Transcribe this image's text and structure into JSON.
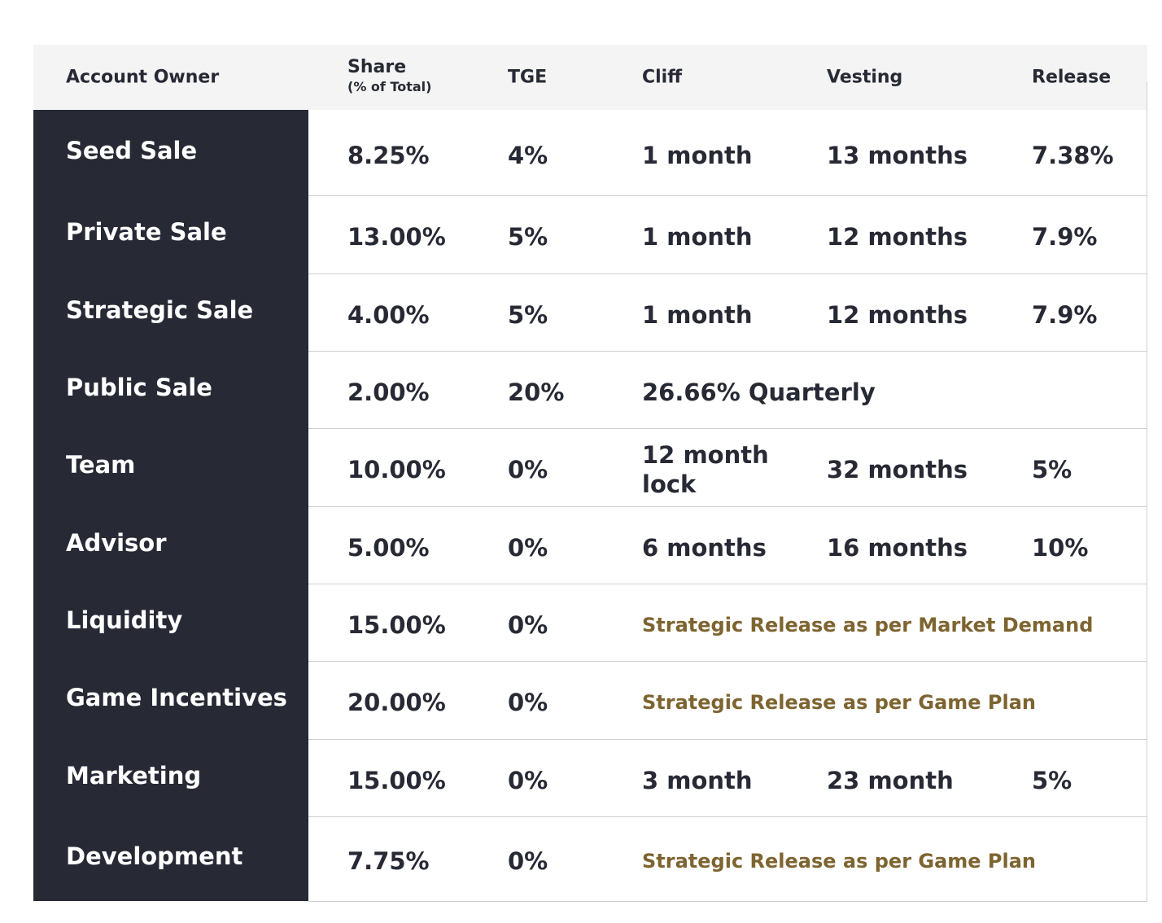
{
  "table": {
    "header": {
      "owner": "Account Owner",
      "share": "Share",
      "share_sub": "(% of Total)",
      "tge": "TGE",
      "cliff": "Cliff",
      "vesting": "Vesting",
      "release": "Release"
    },
    "rows": [
      {
        "owner": "Seed Sale",
        "share": "8.25%",
        "tge": "4%",
        "cliff": "1 month",
        "vesting": "13 months",
        "release": "7.38%"
      },
      {
        "owner": "Private Sale",
        "share": "13.00%",
        "tge": "5%",
        "cliff": "1 month",
        "vesting": "12 months",
        "release": "7.9%"
      },
      {
        "owner": "Strategic Sale",
        "share": "4.00%",
        "tge": "5%",
        "cliff": "1 month",
        "vesting": "12 months",
        "release": "7.9%"
      },
      {
        "owner": "Public Sale",
        "share": "2.00%",
        "tge": "20%",
        "schedule": "26.66% Quarterly"
      },
      {
        "owner": "Team",
        "share": "10.00%",
        "tge": "0%",
        "cliff": "12 month lock",
        "vesting": "32 months",
        "release": "5%"
      },
      {
        "owner": "Advisor",
        "share": "5.00%",
        "tge": "0%",
        "cliff": "6 months",
        "vesting": "16 months",
        "release": "10%"
      },
      {
        "owner": "Liquidity",
        "share": "15.00%",
        "tge": "0%",
        "note": "Strategic Release as per Market Demand"
      },
      {
        "owner": "Game Incentives",
        "share": "20.00%",
        "tge": "0%",
        "note": "Strategic Release as per Game Plan"
      },
      {
        "owner": "Marketing",
        "share": "15.00%",
        "tge": "0%",
        "cliff": "3 month",
        "vesting": "23 month",
        "release": "5%"
      },
      {
        "owner": "Development",
        "share": "7.75%",
        "tge": "0%",
        "note": "Strategic Release as per Game Plan"
      }
    ]
  }
}
